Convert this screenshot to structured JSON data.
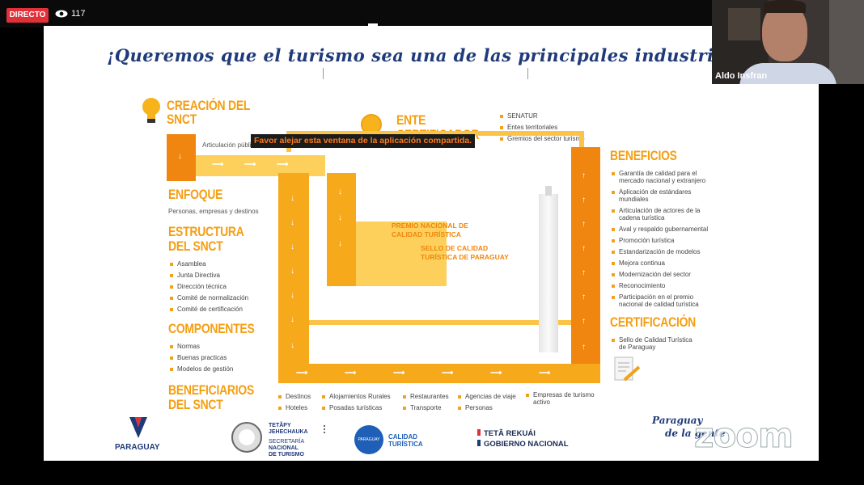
{
  "top": {
    "live_label": "DIRECTO",
    "viewer_count": "117"
  },
  "participant": {
    "name": "Aldo Insfran"
  },
  "warning": "Favor alejar esta ventana de la aplicación compartida.",
  "watermark": "zoom",
  "slide": {
    "title": "¡Queremos que el turismo sea una de las principales industrias de nuestro pa",
    "creacion": {
      "line1": "CREACIÓN DEL",
      "line2": "SNCT"
    },
    "articulacion": "Articulación público – privada",
    "ente": {
      "line1": "ENTE",
      "line2": "CERTIFICADOR",
      "items": [
        "SENATUR",
        "Entes territoriales",
        "Gremios del sector turismo"
      ]
    },
    "enfoque": {
      "heading": "ENFOQUE",
      "text": "Personas, empresas y destinos"
    },
    "estructura": {
      "line1": "ESTRUCTURA",
      "line2": "DEL SNCT",
      "items": [
        "Asamblea",
        "Junta Directiva",
        "Dirección técnica",
        "Comité de normalización",
        "Comité de certificación"
      ]
    },
    "componentes": {
      "heading": "COMPONENTES",
      "items": [
        "Normas",
        "Buenas practicas",
        "Modelos de gestión"
      ]
    },
    "beneficiarios": {
      "line1": "BENEFICIARIOS",
      "line2": "DEL SNCT"
    },
    "premio": {
      "line1": "PREMIO NACIONAL DE",
      "line2": "CALIDAD TURÍSTICA"
    },
    "sello": {
      "line1": "SELLO DE CALIDAD",
      "line2": "TURÍSTICA DE PARAGUAY"
    },
    "beneficios": {
      "heading": "BENEFICIOS",
      "items": [
        [
          "Garantía de calidad para el",
          "mercado nacional y extranjero"
        ],
        [
          "Aplicación de estándares",
          "mundiales"
        ],
        [
          "Articulación de actores de la",
          "cadena turística"
        ],
        [
          "Aval y respaldo gubernamental"
        ],
        [
          "Promoción turística"
        ],
        [
          "Estandarización de modelos"
        ],
        [
          "Mejora continua"
        ],
        [
          "Modernización del sector"
        ],
        [
          "Reconocimiento"
        ],
        [
          "Participación en el premio",
          "nacional de calidad turística"
        ]
      ]
    },
    "certificacion": {
      "heading": "CERTIFICACIÓN",
      "text1": "Sello de Calidad Turística",
      "text2": "de Paraguay"
    },
    "beneficiarios_list": {
      "col1": [
        "Destinos",
        "Hoteles"
      ],
      "col2": [
        "Alojamientos Rurales",
        "Posadas turísticas"
      ],
      "col3": [
        "Restaurantes",
        "Transporte"
      ],
      "col4": [
        "Agencias de viaje",
        "Personas"
      ],
      "col5": [
        "Empresas de turismo",
        "activo"
      ]
    },
    "footer": {
      "paraguay": "PARAGUAY",
      "tetapy1": "TETÃPY",
      "tetapy2": "JEHECHAUKA",
      "senatur1": "SECRETARÍA",
      "senatur2": "NACIONAL",
      "senatur3": "DE TURISMO",
      "calidad1": "CALIDAD",
      "calidad2": "TURÍSTICA",
      "calidad_small": "PARAGUAY",
      "teta": "TETÃ REKUÁI",
      "gobierno": "GOBIERNO NACIONAL",
      "slogan1": "Paraguay",
      "slogan2": "de la gente"
    }
  },
  "colors": {
    "accent": "#f7a91c",
    "accent_dark": "#f0860f",
    "title_blue": "#1f3a7a",
    "live_red": "#e0303a"
  }
}
